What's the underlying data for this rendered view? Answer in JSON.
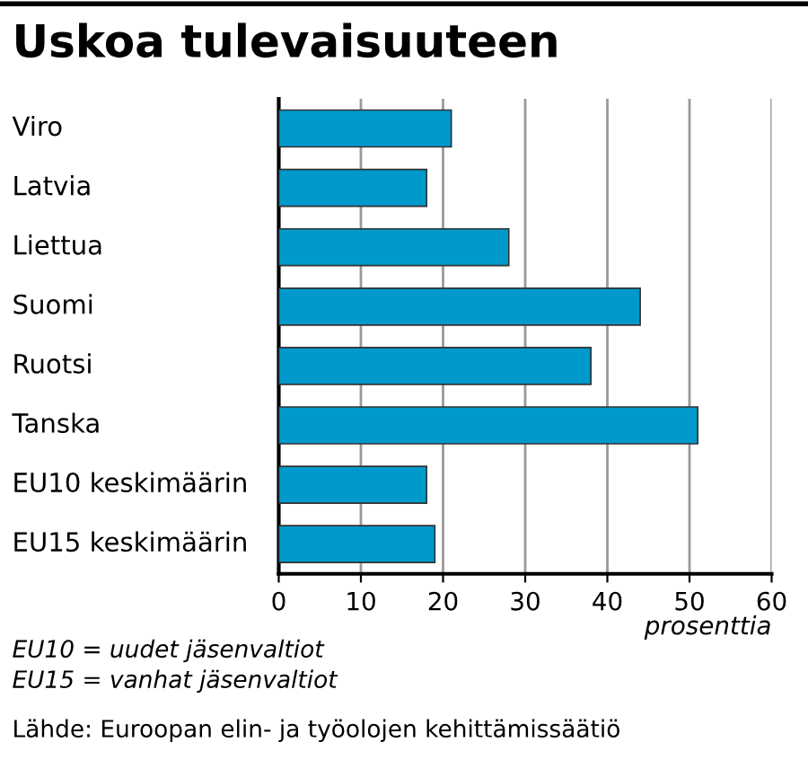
{
  "chart_data": {
    "type": "bar",
    "orientation": "horizontal",
    "title": "Uskoa tulevaisuuteen",
    "categories": [
      "Viro",
      "Latvia",
      "Liettua",
      "Suomi",
      "Ruotsi",
      "Tanska",
      "EU10 keskimäärin",
      "EU15 keskimäärin"
    ],
    "values": [
      21,
      18,
      28,
      44,
      38,
      51,
      18,
      19
    ],
    "color": "#0099cc",
    "xlim": [
      0,
      60
    ],
    "xticks": [
      0,
      10,
      20,
      30,
      40,
      50,
      60
    ],
    "xlabel": "prosenttia",
    "grid": "x",
    "annotations": [
      "EU10 = uudet jäsenvaltiot",
      "EU15 = vanhat jäsenvaltiot",
      "Lähde: Euroopan elin- ja työolojen kehittämissäätiö"
    ]
  }
}
